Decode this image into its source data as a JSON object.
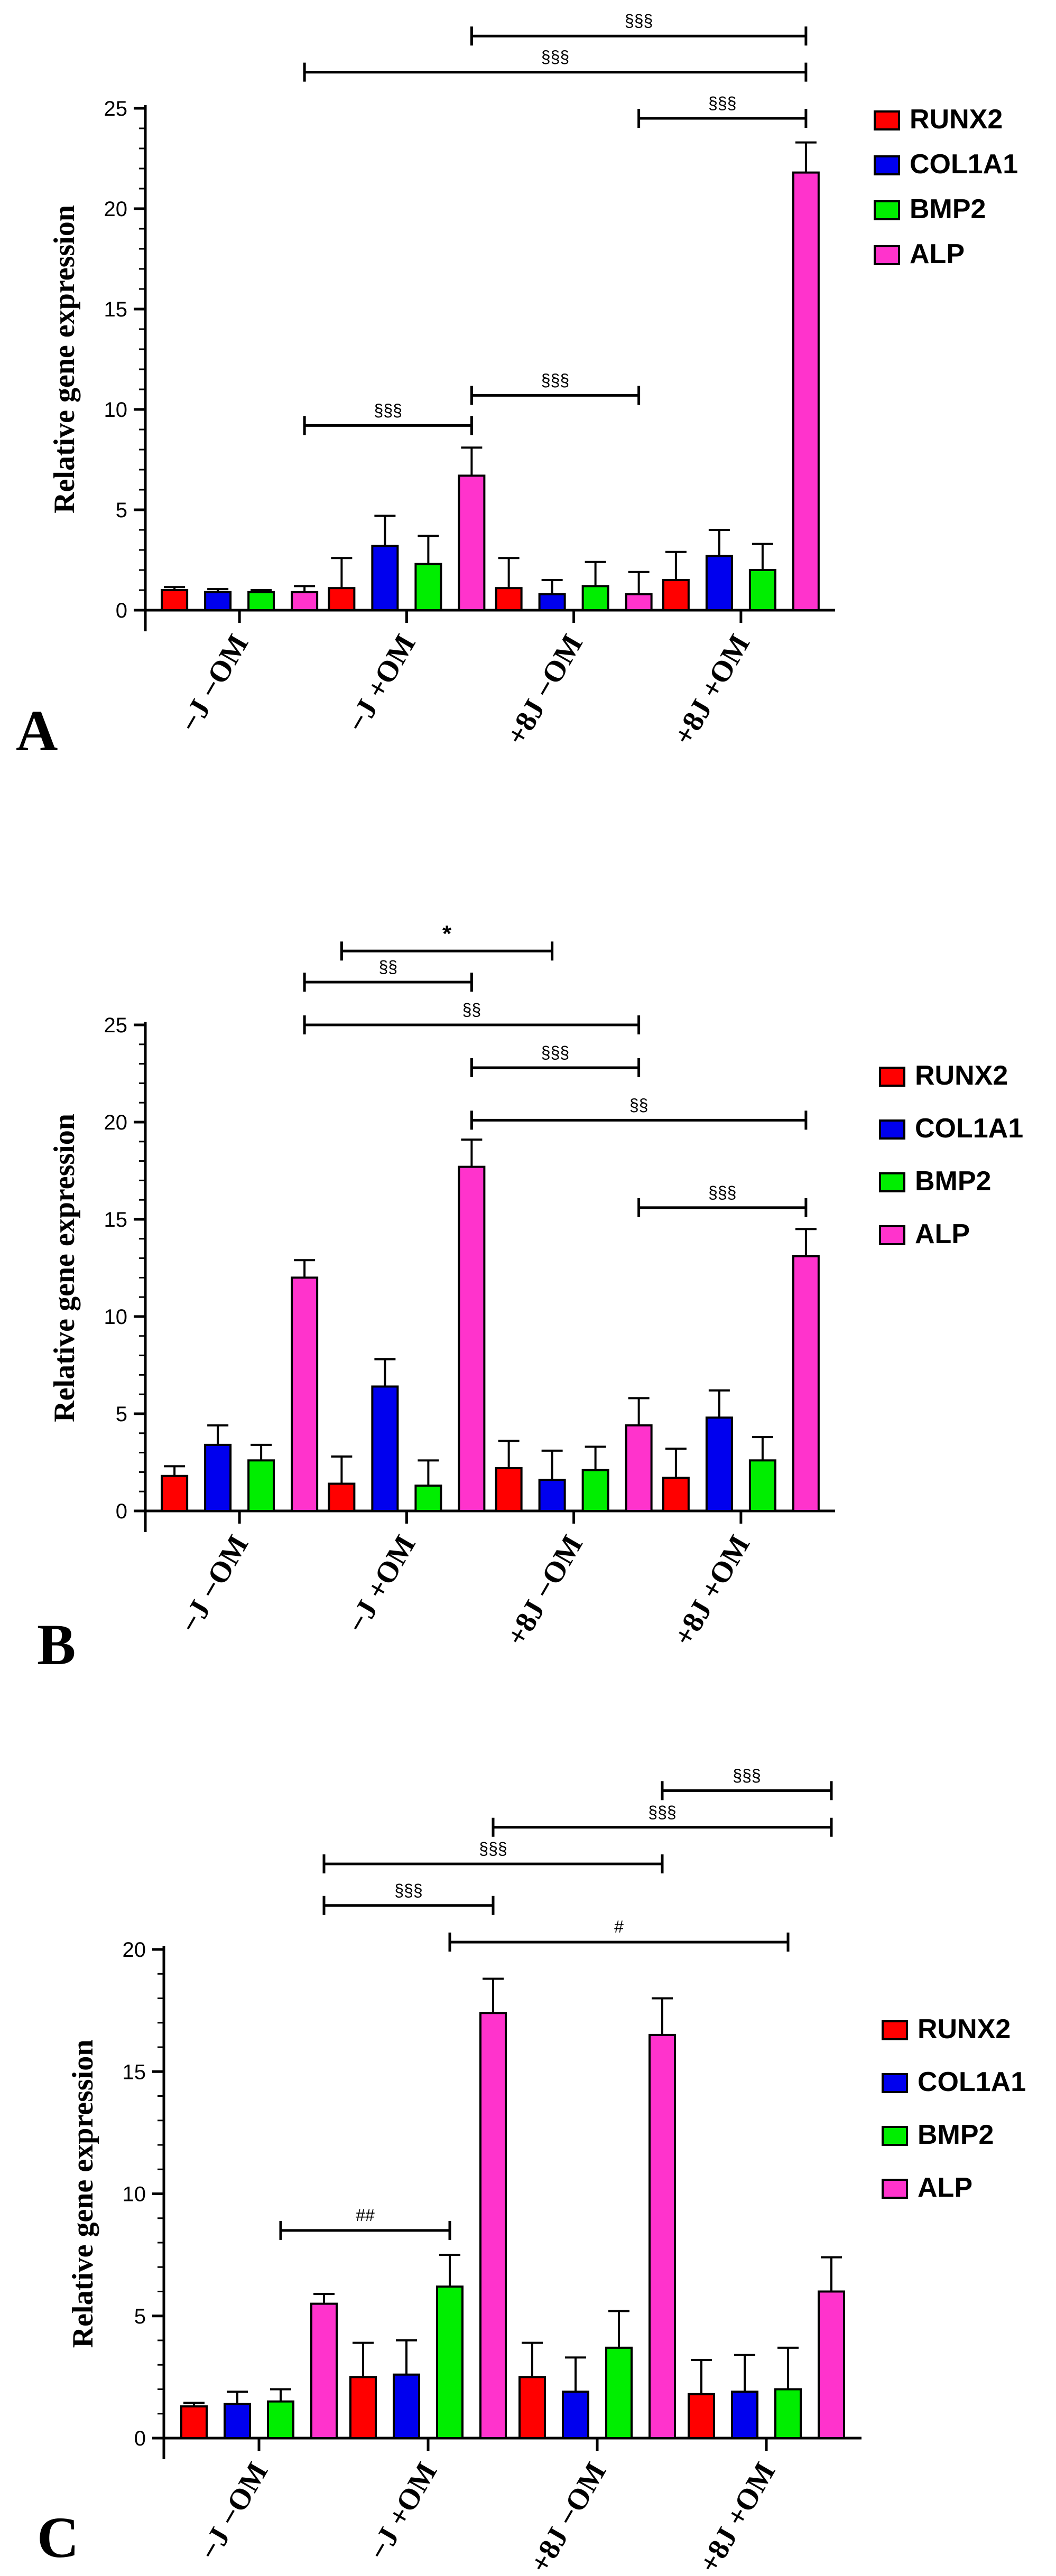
{
  "chart_data": [
    {
      "panel": "A",
      "type": "bar",
      "ylabel": "Relative gene expression",
      "ylim": [
        0,
        25
      ],
      "yticks": [
        0,
        5,
        10,
        15,
        20,
        25
      ],
      "categories": [
        "−J −OM",
        "−J +OM",
        "+8J −OM",
        "+8J +OM"
      ],
      "series": [
        {
          "name": "RUNX2",
          "color": "#ff0000",
          "values": [
            1.0,
            1.1,
            1.1,
            1.5
          ],
          "errors": [
            0.15,
            1.5,
            1.5,
            1.4
          ]
        },
        {
          "name": "COL1A1",
          "color": "#0000ee",
          "values": [
            0.9,
            3.2,
            0.8,
            2.7
          ],
          "errors": [
            0.15,
            1.5,
            0.7,
            1.3
          ]
        },
        {
          "name": "BMP2",
          "color": "#00ee00",
          "values": [
            0.9,
            2.3,
            1.2,
            2.0
          ],
          "errors": [
            0.1,
            1.4,
            1.2,
            1.3
          ]
        },
        {
          "name": "ALP",
          "color": "#ff33cc",
          "values": [
            0.9,
            6.7,
            0.8,
            21.8
          ],
          "errors": [
            0.3,
            1.4,
            1.1,
            1.5
          ]
        }
      ],
      "annotations": [
        {
          "label": "§§§",
          "from": [
            1,
            3
          ],
          "to": [
            3,
            3
          ],
          "level": 28.6
        },
        {
          "label": "§§§",
          "from": [
            0,
            3
          ],
          "to": [
            3,
            3
          ],
          "level": 26.8
        },
        {
          "label": "§§§",
          "from": [
            2,
            3
          ],
          "to": [
            3,
            3
          ],
          "level": 24.5
        },
        {
          "label": "§§§",
          "from": [
            1,
            3
          ],
          "to": [
            2,
            3
          ],
          "level": 10.7
        },
        {
          "label": "§§§",
          "from": [
            0,
            3
          ],
          "to": [
            1,
            3
          ],
          "level": 9.2
        }
      ]
    },
    {
      "panel": "B",
      "type": "bar",
      "ylabel": "Relative gene expression",
      "ylim": [
        0,
        25
      ],
      "yticks": [
        0,
        5,
        10,
        15,
        20,
        25
      ],
      "categories": [
        "−J −OM",
        "−J +OM",
        "+8J −OM",
        "+8J +OM"
      ],
      "series": [
        {
          "name": "RUNX2",
          "color": "#ff0000",
          "values": [
            1.8,
            1.4,
            2.2,
            1.7
          ],
          "errors": [
            0.5,
            1.4,
            1.4,
            1.5
          ]
        },
        {
          "name": "COL1A1",
          "color": "#0000ee",
          "values": [
            3.4,
            6.4,
            1.6,
            4.8
          ],
          "errors": [
            1.0,
            1.4,
            1.5,
            1.4
          ]
        },
        {
          "name": "BMP2",
          "color": "#00ee00",
          "values": [
            2.6,
            1.3,
            2.1,
            2.6
          ],
          "errors": [
            0.8,
            1.3,
            1.2,
            1.2
          ]
        },
        {
          "name": "ALP",
          "color": "#ff33cc",
          "values": [
            12.0,
            17.7,
            4.4,
            13.1
          ],
          "errors": [
            0.9,
            1.4,
            1.4,
            1.4
          ]
        }
      ],
      "annotations": [
        {
          "label": "*",
          "from": [
            1,
            0
          ],
          "to": [
            2,
            1
          ],
          "level": 28.8
        },
        {
          "label": "§§",
          "from": [
            0,
            3
          ],
          "to": [
            1,
            3
          ],
          "level": 27.2
        },
        {
          "label": "§§",
          "from": [
            0,
            3
          ],
          "to": [
            2,
            3
          ],
          "level": 25.0
        },
        {
          "label": "§§§",
          "from": [
            1,
            3
          ],
          "to": [
            2,
            3
          ],
          "level": 22.8
        },
        {
          "label": "§§",
          "from": [
            1,
            3
          ],
          "to": [
            3,
            3
          ],
          "level": 20.1
        },
        {
          "label": "§§§",
          "from": [
            2,
            3
          ],
          "to": [
            3,
            3
          ],
          "level": 15.6
        }
      ]
    },
    {
      "panel": "C",
      "type": "bar",
      "ylabel": "Relative gene expression",
      "ylim": [
        0,
        20
      ],
      "yticks": [
        0,
        5,
        10,
        15,
        20
      ],
      "categories": [
        "−J −OM",
        "−J +OM",
        "+8J −OM",
        "+8J +OM"
      ],
      "series": [
        {
          "name": "RUNX2",
          "color": "#ff0000",
          "values": [
            1.3,
            2.5,
            2.5,
            1.8
          ],
          "errors": [
            0.15,
            1.4,
            1.4,
            1.4
          ]
        },
        {
          "name": "COL1A1",
          "color": "#0000ee",
          "values": [
            1.4,
            2.6,
            1.9,
            1.9
          ],
          "errors": [
            0.5,
            1.4,
            1.4,
            1.5
          ]
        },
        {
          "name": "BMP2",
          "color": "#00ee00",
          "values": [
            1.5,
            6.2,
            3.7,
            2.0
          ],
          "errors": [
            0.5,
            1.3,
            1.5,
            1.7
          ]
        },
        {
          "name": "ALP",
          "color": "#ff33cc",
          "values": [
            5.5,
            17.4,
            16.5,
            6.0
          ],
          "errors": [
            0.4,
            1.4,
            1.5,
            1.4
          ]
        }
      ],
      "annotations": [
        {
          "label": "§§§",
          "from": [
            2,
            3
          ],
          "to": [
            3,
            3
          ],
          "level": 26.5
        },
        {
          "label": "§§§",
          "from": [
            1,
            3
          ],
          "to": [
            3,
            3
          ],
          "level": 25.0
        },
        {
          "label": "§§§",
          "from": [
            0,
            3
          ],
          "to": [
            2,
            3
          ],
          "level": 23.5
        },
        {
          "label": "§§§",
          "from": [
            0,
            3
          ],
          "to": [
            1,
            3
          ],
          "level": 21.8
        },
        {
          "label": "#",
          "from": [
            1,
            2
          ],
          "to": [
            3,
            2
          ],
          "level": 20.3
        },
        {
          "label": "##",
          "from": [
            0,
            2
          ],
          "to": [
            1,
            2
          ],
          "level": 8.5
        }
      ]
    }
  ]
}
